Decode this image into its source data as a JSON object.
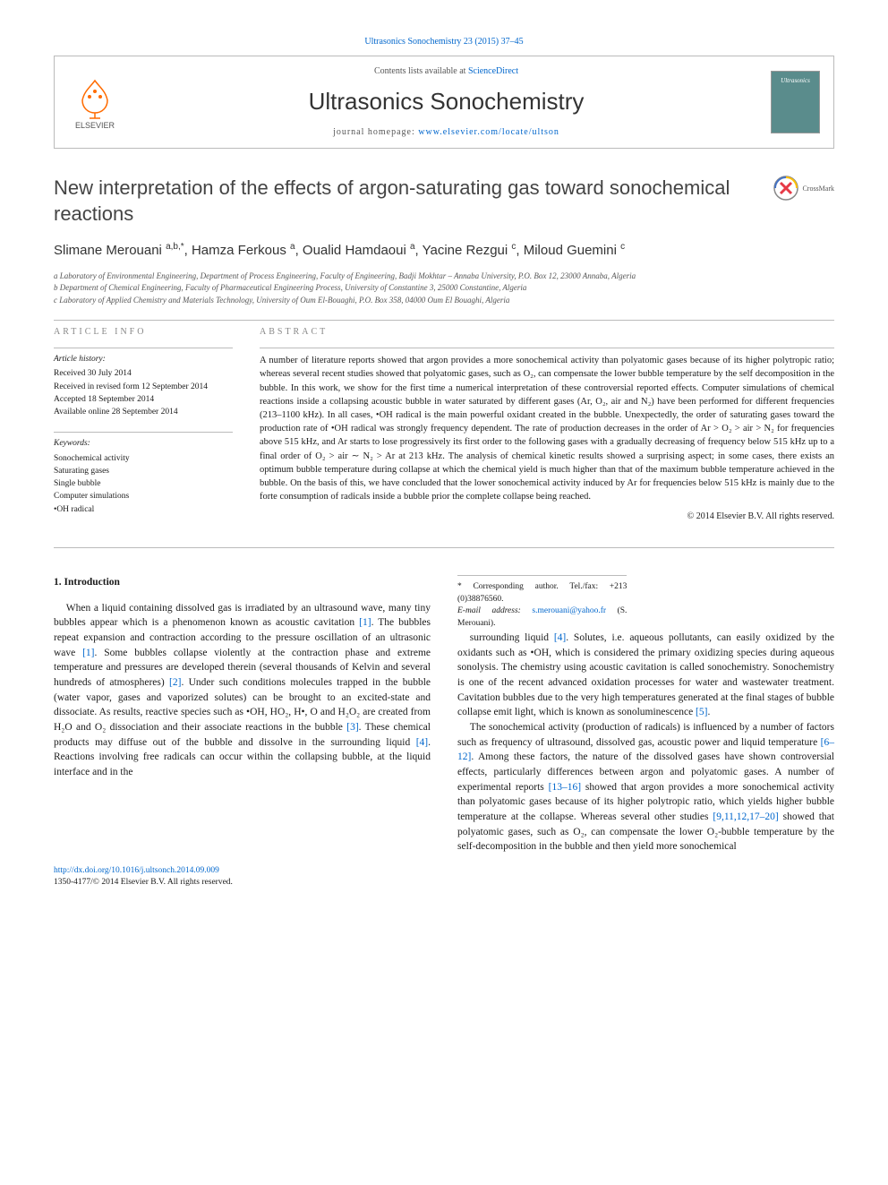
{
  "journal_ref": "Ultrasonics Sonochemistry 23 (2015) 37–45",
  "contents_line_prefix": "Contents lists available at ",
  "contents_link": "ScienceDirect",
  "journal_name": "Ultrasonics Sonochemistry",
  "homepage_prefix": "journal homepage: ",
  "homepage_url": "www.elsevier.com/locate/ultson",
  "publisher": "ELSEVIER",
  "cover_text": "Ultrasonics",
  "crossmark": "CrossMark",
  "title": "New interpretation of the effects of argon-saturating gas toward sonochemical reactions",
  "authors_html": "Slimane Merouani <sup>a,b,*</sup>, Hamza Ferkous <sup>a</sup>, Oualid Hamdaoui <sup>a</sup>, Yacine Rezgui <sup>c</sup>, Miloud Guemini <sup>c</sup>",
  "affiliations": [
    "a Laboratory of Environmental Engineering, Department of Process Engineering, Faculty of Engineering, Badji Mokhtar – Annaba University, P.O. Box 12, 23000 Annaba, Algeria",
    "b Department of Chemical Engineering, Faculty of Pharmaceutical Engineering Process, University of Constantine 3, 25000 Constantine, Algeria",
    "c Laboratory of Applied Chemistry and Materials Technology, University of Oum El-Bouaghi, P.O. Box 358, 04000 Oum El Bouaghi, Algeria"
  ],
  "info_heading": "ARTICLE INFO",
  "abstract_heading": "ABSTRACT",
  "history_label": "Article history:",
  "history": [
    "Received 30 July 2014",
    "Received in revised form 12 September 2014",
    "Accepted 18 September 2014",
    "Available online 28 September 2014"
  ],
  "keywords_label": "Keywords:",
  "keywords": [
    "Sonochemical activity",
    "Saturating gases",
    "Single bubble",
    "Computer simulations",
    "•OH radical"
  ],
  "abstract": "A number of literature reports showed that argon provides a more sonochemical activity than polyatomic gases because of its higher polytropic ratio; whereas several recent studies showed that polyatomic gases, such as O₂, can compensate the lower bubble temperature by the self decomposition in the bubble. In this work, we show for the first time a numerical interpretation of these controversial reported effects. Computer simulations of chemical reactions inside a collapsing acoustic bubble in water saturated by different gases (Ar, O₂, air and N₂) have been performed for different frequencies (213–1100 kHz). In all cases, •OH radical is the main powerful oxidant created in the bubble. Unexpectedly, the order of saturating gases toward the production rate of •OH radical was strongly frequency dependent. The rate of production decreases in the order of Ar > O₂ > air > N₂ for frequencies above 515 kHz, and Ar starts to lose progressively its first order to the following gases with a gradually decreasing of frequency below 515 kHz up to a final order of O₂ > air ∼ N₂ > Ar at 213 kHz. The analysis of chemical kinetic results showed a surprising aspect; in some cases, there exists an optimum bubble temperature during collapse at which the chemical yield is much higher than that of the maximum bubble temperature achieved in the bubble. On the basis of this, we have concluded that the lower sonochemical activity induced by Ar for frequencies below 515 kHz is mainly due to the forte consumption of radicals inside a bubble prior the complete collapse being reached.",
  "copyright": "© 2014 Elsevier B.V. All rights reserved.",
  "section1_heading": "1. Introduction",
  "para1": "When a liquid containing dissolved gas is irradiated by an ultrasound wave, many tiny bubbles appear which is a phenomenon known as acoustic cavitation <span class=\"cite\">[1]</span>. The bubbles repeat expansion and contraction according to the pressure oscillation of an ultrasonic wave <span class=\"cite\">[1]</span>. Some bubbles collapse violently at the contraction phase and extreme temperature and pressures are developed therein (several thousands of Kelvin and several hundreds of atmospheres) <span class=\"cite\">[2]</span>. Under such conditions molecules trapped in the bubble (water vapor, gases and vaporized solutes) can be brought to an excited-state and dissociate. As results, reactive species such as •OH, HO₂, H•, O and H₂O₂ are created from H₂O and O₂ dissociation and their associate reactions in the bubble <span class=\"cite\">[3]</span>. These chemical products may diffuse out of the bubble and dissolve in the surrounding liquid <span class=\"cite\">[4]</span>. Reactions involving free radicals can occur within the collapsing bubble, at the liquid interface and in the",
  "para2": "surrounding liquid <span class=\"cite\">[4]</span>. Solutes, i.e. aqueous pollutants, can easily oxidized by the oxidants such as •OH, which is considered the primary oxidizing species during aqueous sonolysis. The chemistry using acoustic cavitation is called sonochemistry. Sonochemistry is one of the recent advanced oxidation processes for water and wastewater treatment. Cavitation bubbles due to the very high temperatures generated at the final stages of bubble collapse emit light, which is known as sonoluminescence <span class=\"cite\">[5]</span>.",
  "para3": "The sonochemical activity (production of radicals) is influenced by a number of factors such as frequency of ultrasound, dissolved gas, acoustic power and liquid temperature <span class=\"cite\">[6–12]</span>. Among these factors, the nature of the dissolved gases have shown controversial effects, particularly differences between argon and polyatomic gases. A number of experimental reports <span class=\"cite\">[13–16]</span> showed that argon provides a more sonochemical activity than polyatomic gases because of its higher polytropic ratio, which yields higher bubble temperature at the collapse. Whereas several other studies <span class=\"cite\">[9,11,12,17–20]</span> showed that polyatomic gases, such as O₂, can compensate the lower O₂-bubble temperature by the self-decomposition in the bubble and then yield more sonochemical",
  "corresponding": "* Corresponding author. Tel./fax: +213 (0)38876560.",
  "email_prefix": "E-mail address: ",
  "email": "s.merouani@yahoo.fr",
  "email_suffix": " (S. Merouani).",
  "doi_url": "http://dx.doi.org/10.1016/j.ultsonch.2014.09.009",
  "issn_line": "1350-4177/© 2014 Elsevier B.V. All rights reserved."
}
